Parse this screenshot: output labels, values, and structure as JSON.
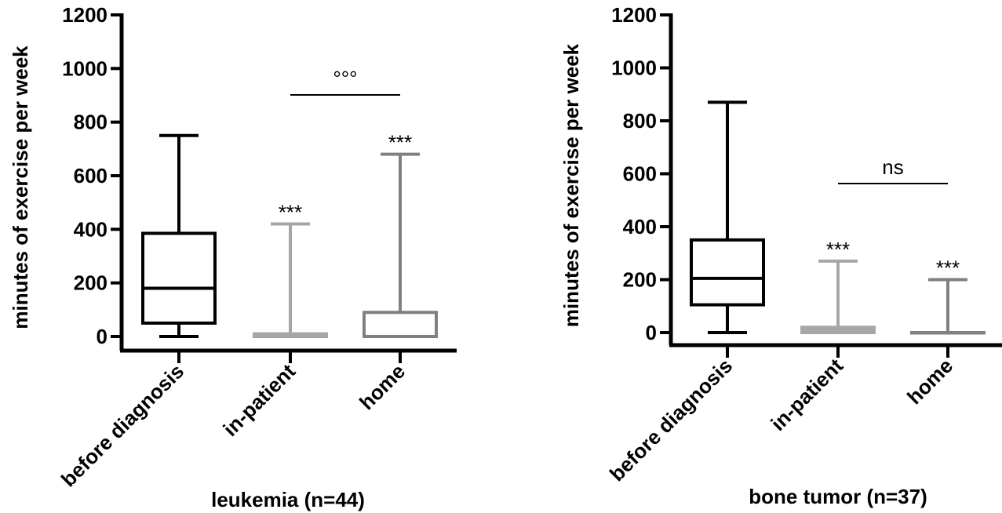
{
  "chart_data": [
    {
      "type": "box",
      "xlabel": "leukemia (n=44)",
      "ylabel": "minutes of exercise per week",
      "ylim": [
        0,
        1200
      ],
      "yticks": [
        0,
        200,
        400,
        600,
        800,
        1000,
        1200
      ],
      "grid": false,
      "categories": [
        "before diagnosis",
        "in-patient",
        "home"
      ],
      "boxes": [
        {
          "category": "before diagnosis",
          "min": 0,
          "q1": 50,
          "median": 180,
          "q3": 385,
          "max": 750,
          "color": "#000000",
          "annotation": ""
        },
        {
          "category": "in-patient",
          "min": 0,
          "q1": 0,
          "median": 5,
          "q3": 10,
          "max": 420,
          "color": "#a6a6a6",
          "annotation": "***"
        },
        {
          "category": "home",
          "min": 0,
          "q1": 0,
          "median": 0,
          "q3": 90,
          "max": 680,
          "color": "#808080",
          "annotation": "***"
        }
      ],
      "comparison": {
        "from": "in-patient",
        "to": "home",
        "label": "°°°"
      }
    },
    {
      "type": "box",
      "xlabel": "bone tumor (n=37)",
      "ylabel": "minutes of exercise per week",
      "ylim": [
        0,
        1200
      ],
      "yticks": [
        0,
        200,
        400,
        600,
        800,
        1000,
        1200
      ],
      "grid": false,
      "categories": [
        "before diagnosis",
        "in-patient",
        "home"
      ],
      "boxes": [
        {
          "category": "before diagnosis",
          "min": 0,
          "q1": 105,
          "median": 205,
          "q3": 350,
          "max": 870,
          "color": "#000000",
          "annotation": ""
        },
        {
          "category": "in-patient",
          "min": 0,
          "q1": 0,
          "median": 10,
          "q3": 20,
          "max": 270,
          "color": "#a6a6a6",
          "annotation": "***"
        },
        {
          "category": "home",
          "min": 0,
          "q1": 0,
          "median": 0,
          "q3": 0,
          "max": 200,
          "color": "#808080",
          "annotation": "***"
        }
      ],
      "comparison": {
        "from": "in-patient",
        "to": "home",
        "label": "ns"
      }
    }
  ]
}
